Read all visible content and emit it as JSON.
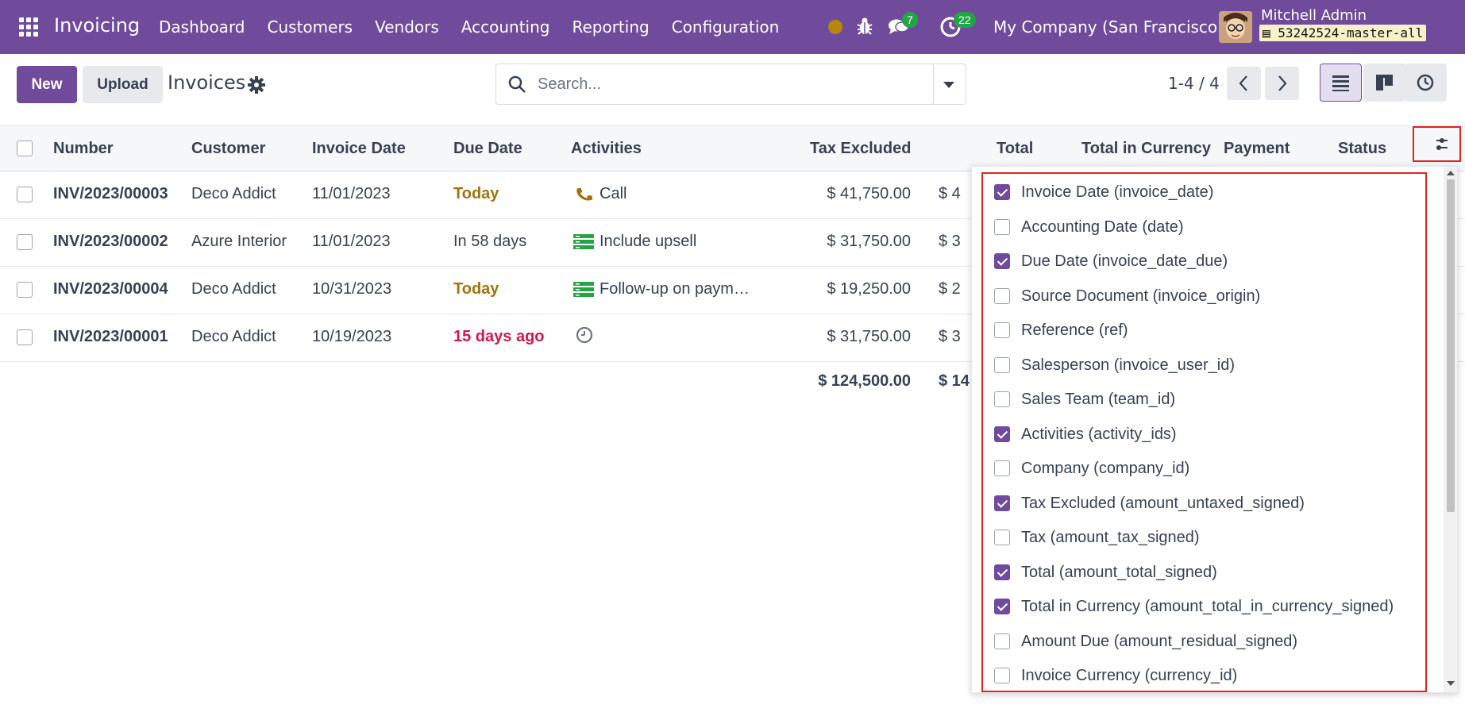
{
  "navbar": {
    "app_name": "Invoicing",
    "menu": [
      "Dashboard",
      "Customers",
      "Vendors",
      "Accounting",
      "Reporting",
      "Configuration"
    ],
    "chat_count": "7",
    "activity_count": "22",
    "company": "My Company (San Francisco)",
    "user_name": "Mitchell Admin",
    "database": "53242524-master-all"
  },
  "control": {
    "new_label": "New",
    "upload_label": "Upload",
    "title": "Invoices",
    "search_placeholder": "Search...",
    "pager": "1-4 / 4"
  },
  "table": {
    "headers": {
      "number": "Number",
      "customer": "Customer",
      "invoice_date": "Invoice Date",
      "due_date": "Due Date",
      "activities": "Activities",
      "tax_excluded": "Tax Excluded",
      "total": "Total",
      "total_currency": "Total in Currency",
      "payment": "Payment",
      "status": "Status"
    },
    "rows": [
      {
        "number": "INV/2023/00003",
        "customer": "Deco Addict",
        "invoice_date": "11/01/2023",
        "due_date": "Today",
        "due_state": "warn",
        "activity_icon": "phone-icon",
        "activity": "Call",
        "tax_excluded": "$ 41,750.00",
        "total_partial": "$ 4"
      },
      {
        "number": "INV/2023/00002",
        "customer": "Azure Interior",
        "invoice_date": "11/01/2023",
        "due_date": "In 58 days",
        "due_state": "normal",
        "activity_icon": "task-list-icon",
        "activity": "Include upsell",
        "tax_excluded": "$ 31,750.00",
        "total_partial": "$ 3"
      },
      {
        "number": "INV/2023/00004",
        "customer": "Deco Addict",
        "invoice_date": "10/31/2023",
        "due_date": "Today",
        "due_state": "warn",
        "activity_icon": "task-list-icon",
        "activity": "Follow-up on paym…",
        "tax_excluded": "$ 19,250.00",
        "total_partial": "$ 2"
      },
      {
        "number": "INV/2023/00001",
        "customer": "Deco Addict",
        "invoice_date": "10/19/2023",
        "due_date": "15 days ago",
        "due_state": "danger",
        "activity_icon": "clock-icon",
        "activity": "",
        "tax_excluded": "$ 31,750.00",
        "total_partial": "$ 3"
      }
    ],
    "totals": {
      "tax_excluded": "$ 124,500.00",
      "total_partial": "$ 14"
    }
  },
  "optional_columns": [
    {
      "label": "Invoice Date (invoice_date)",
      "checked": true
    },
    {
      "label": "Accounting Date (date)",
      "checked": false
    },
    {
      "label": "Due Date (invoice_date_due)",
      "checked": true
    },
    {
      "label": "Source Document (invoice_origin)",
      "checked": false
    },
    {
      "label": "Reference (ref)",
      "checked": false
    },
    {
      "label": "Salesperson (invoice_user_id)",
      "checked": false
    },
    {
      "label": "Sales Team (team_id)",
      "checked": false
    },
    {
      "label": "Activities (activity_ids)",
      "checked": true
    },
    {
      "label": "Company (company_id)",
      "checked": false
    },
    {
      "label": "Tax Excluded (amount_untaxed_signed)",
      "checked": true
    },
    {
      "label": "Tax (amount_tax_signed)",
      "checked": false
    },
    {
      "label": "Total (amount_total_signed)",
      "checked": true
    },
    {
      "label": "Total in Currency (amount_total_in_currency_signed)",
      "checked": true
    },
    {
      "label": "Amount Due (amount_residual_signed)",
      "checked": false
    },
    {
      "label": "Invoice Currency (currency_id)",
      "checked": false
    }
  ],
  "colors": {
    "brand": "#714B9B",
    "warn": "#A0740B",
    "danger": "#D1184A",
    "badge": "#22A447",
    "highlight": "#E02424"
  }
}
